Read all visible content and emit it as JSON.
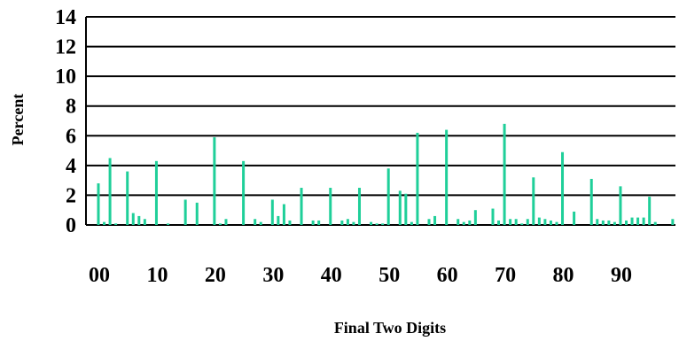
{
  "chart_data": {
    "type": "bar",
    "xlabel": "Final Two Digits",
    "ylabel": "Percent",
    "ylim": [
      0,
      14
    ],
    "yticks": [
      0,
      2,
      4,
      6,
      8,
      10,
      12,
      14
    ],
    "xtick_labels": [
      "00",
      "10",
      "20",
      "30",
      "40",
      "50",
      "60",
      "70",
      "80",
      "90"
    ],
    "xtick_values": [
      0,
      10,
      20,
      30,
      40,
      50,
      60,
      70,
      80,
      90
    ],
    "grid": true,
    "bar_color": "#1fcf99",
    "categories": [
      0,
      1,
      2,
      3,
      4,
      5,
      6,
      7,
      8,
      9,
      10,
      11,
      12,
      13,
      14,
      15,
      16,
      17,
      18,
      19,
      20,
      21,
      22,
      23,
      24,
      25,
      26,
      27,
      28,
      29,
      30,
      31,
      32,
      33,
      34,
      35,
      36,
      37,
      38,
      39,
      40,
      41,
      42,
      43,
      44,
      45,
      46,
      47,
      48,
      49,
      50,
      51,
      52,
      53,
      54,
      55,
      56,
      57,
      58,
      59,
      60,
      61,
      62,
      63,
      64,
      65,
      66,
      67,
      68,
      69,
      70,
      71,
      72,
      73,
      74,
      75,
      76,
      77,
      78,
      79,
      80,
      81,
      82,
      83,
      84,
      85,
      86,
      87,
      88,
      89,
      90,
      91,
      92,
      93,
      94,
      95,
      96,
      97,
      98,
      99
    ],
    "values": [
      2.8,
      0.2,
      4.5,
      0.1,
      0,
      3.6,
      0.8,
      0.6,
      0.4,
      0,
      4.3,
      0,
      0.1,
      0,
      0,
      1.7,
      0,
      1.5,
      0,
      0,
      5.9,
      0.1,
      0.4,
      0,
      0,
      4.3,
      0,
      0.4,
      0.2,
      0,
      1.7,
      0.6,
      1.4,
      0.3,
      0,
      2.5,
      0,
      0.3,
      0.3,
      0,
      2.5,
      0,
      0.3,
      0.4,
      0.2,
      2.5,
      0,
      0.2,
      0.1,
      0.1,
      3.8,
      0,
      2.3,
      2.1,
      0.2,
      6.2,
      0,
      0.4,
      0.6,
      0,
      6.4,
      0,
      0.4,
      0.2,
      0.3,
      1.0,
      0,
      0,
      1.1,
      0.3,
      6.8,
      0.4,
      0.4,
      0.1,
      0.4,
      3.2,
      0.5,
      0.4,
      0.3,
      0.2,
      4.9,
      0,
      0.9,
      0,
      0,
      3.1,
      0.4,
      0.3,
      0.3,
      0.2,
      2.6,
      0.3,
      0.5,
      0.5,
      0.5,
      1.9,
      0.2,
      0,
      0,
      0.4
    ]
  }
}
